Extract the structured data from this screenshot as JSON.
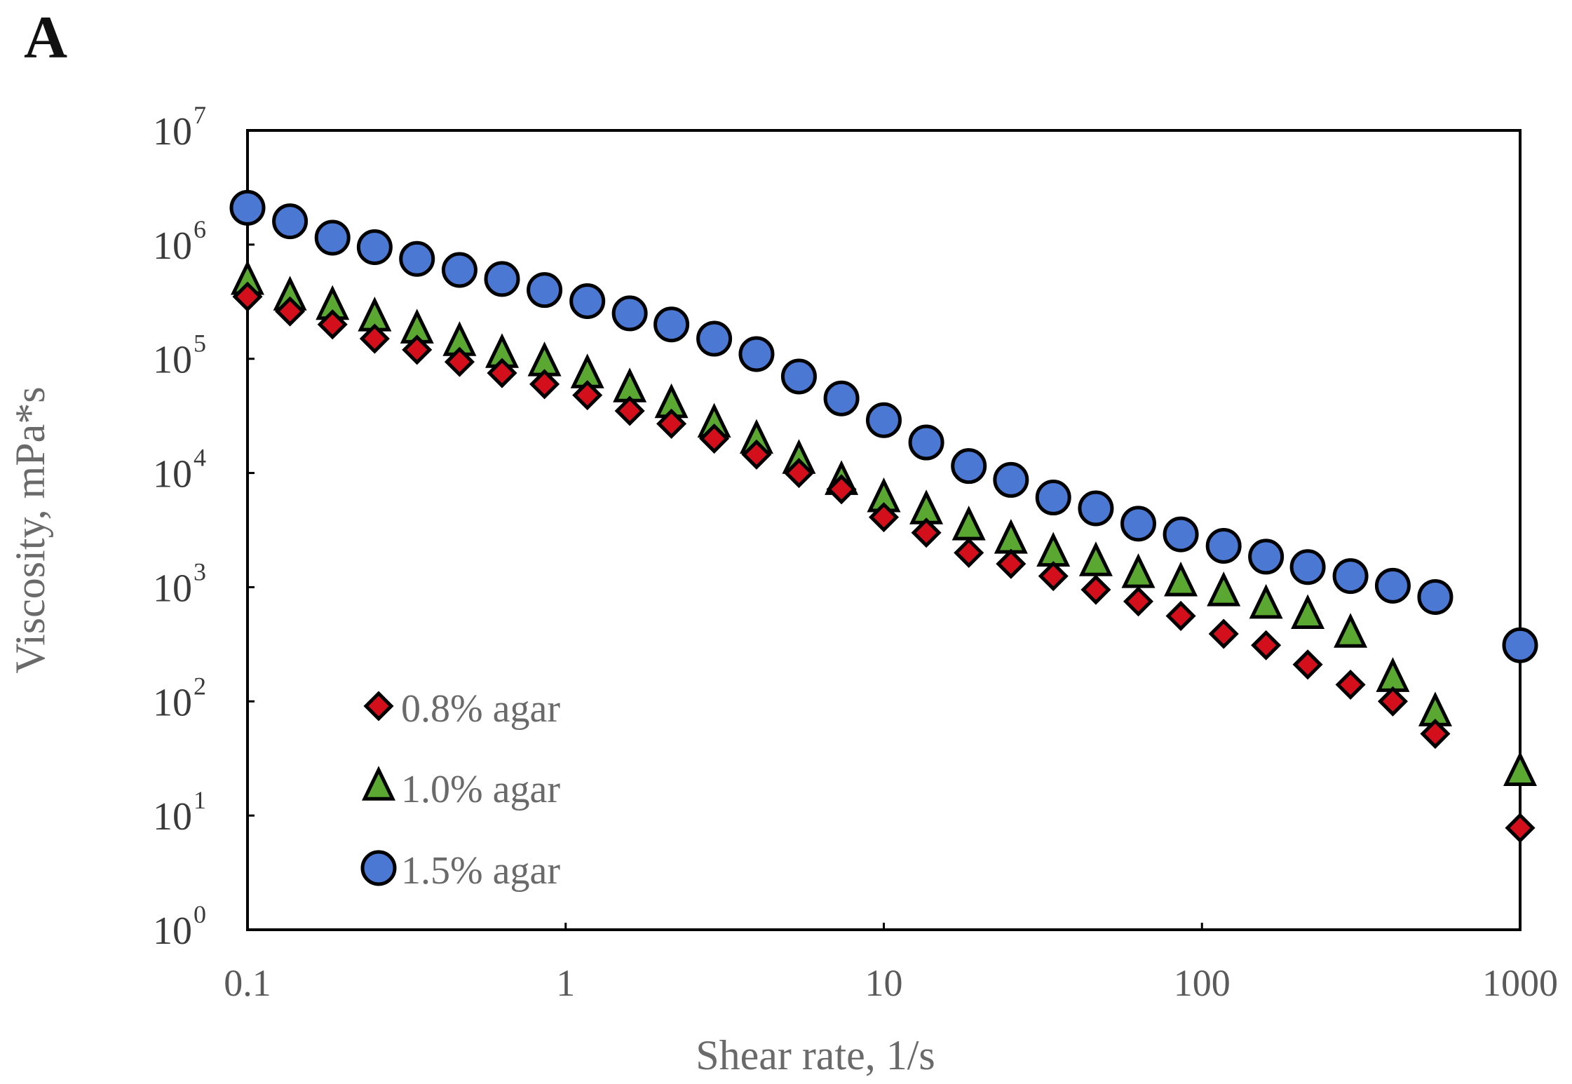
{
  "panel_label": "A",
  "chart_data": {
    "type": "scatter",
    "title": "",
    "xlabel": "Shear rate,  1/s",
    "ylabel": "Viscosity,  mPa*s",
    "xscale": "log",
    "yscale": "log",
    "xlim": [
      0.1,
      1000
    ],
    "ylim": [
      1,
      10000000
    ],
    "xticks": [
      "0.1",
      "1",
      "10",
      "100",
      "1000"
    ],
    "yticks": [
      {
        "base": "10",
        "exp": "0"
      },
      {
        "base": "10",
        "exp": "1"
      },
      {
        "base": "10",
        "exp": "2"
      },
      {
        "base": "10",
        "exp": "3"
      },
      {
        "base": "10",
        "exp": "4"
      },
      {
        "base": "10",
        "exp": "5"
      },
      {
        "base": "10",
        "exp": "6"
      },
      {
        "base": "10",
        "exp": "7"
      }
    ],
    "legend_position": "bottom-left",
    "x": [
      0.1,
      0.136,
      0.185,
      0.251,
      0.341,
      0.464,
      0.631,
      0.858,
      1.17,
      1.59,
      2.15,
      2.93,
      3.98,
      5.41,
      7.36,
      10.0,
      13.6,
      18.5,
      25.1,
      34.1,
      46.4,
      63.1,
      85.8,
      117,
      159,
      215,
      293,
      398,
      541,
      1000
    ],
    "series": [
      {
        "name": "0.8% agar",
        "marker": "diamond",
        "color": "#d40f1c",
        "values": [
          350000,
          260000,
          200000,
          150000,
          120000,
          94000,
          75000,
          60000,
          48000,
          35000,
          27000,
          20000,
          14500,
          10000,
          7200,
          4100,
          3000,
          2000,
          1600,
          1250,
          950,
          750,
          560,
          390,
          310,
          210,
          140,
          100,
          52,
          7.8
        ]
      },
      {
        "name": "1.0% agar",
        "marker": "triangle",
        "color": "#5aa832",
        "values": [
          480000,
          350000,
          290000,
          230000,
          180000,
          140000,
          110000,
          93000,
          73000,
          55000,
          40000,
          27000,
          19500,
          13000,
          8500,
          6000,
          4700,
          3400,
          2600,
          2000,
          1650,
          1300,
          1100,
          900,
          700,
          570,
          390,
          160,
          80,
          24
        ]
      },
      {
        "name": "1.5% agar",
        "marker": "circle",
        "color": "#4a78d2",
        "values": [
          2100000,
          1600000,
          1150000,
          950000,
          750000,
          600000,
          500000,
          400000,
          320000,
          250000,
          200000,
          150000,
          110000,
          70000,
          45000,
          29000,
          18500,
          11500,
          8700,
          6100,
          4900,
          3600,
          2900,
          2300,
          1850,
          1500,
          1250,
          1030,
          820,
          310
        ]
      }
    ]
  }
}
